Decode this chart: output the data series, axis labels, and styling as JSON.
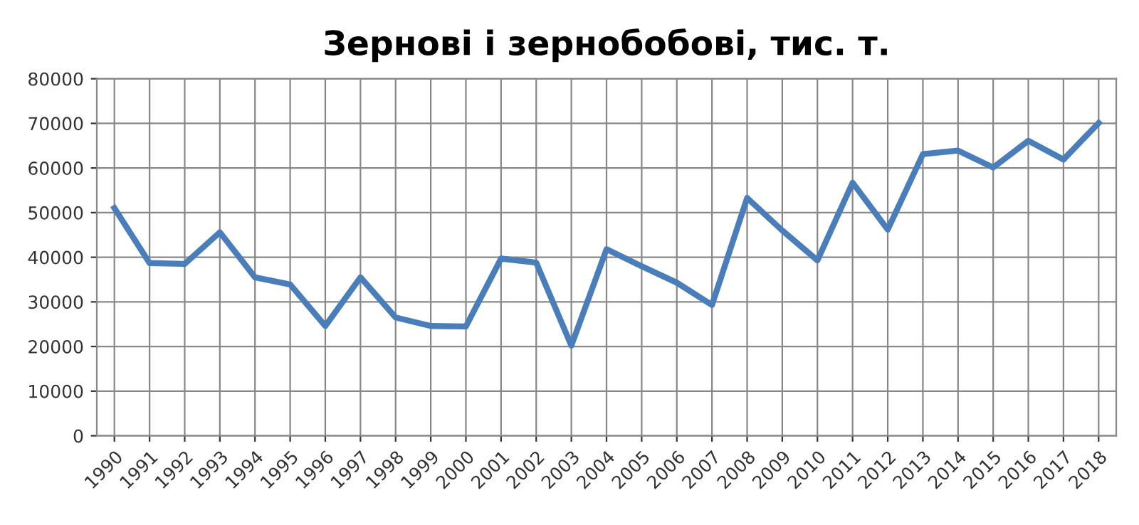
{
  "chart_data": {
    "type": "line",
    "title": "Зернові і зернобобові, тис. т.",
    "categories": [
      "1990",
      "1991",
      "1992",
      "1993",
      "1994",
      "1995",
      "1996",
      "1997",
      "1998",
      "1999",
      "2000",
      "2001",
      "2002",
      "2003",
      "2004",
      "2005",
      "2006",
      "2007",
      "2008",
      "2009",
      "2010",
      "2011",
      "2012",
      "2013",
      "2014",
      "2015",
      "2016",
      "2017",
      "2018"
    ],
    "series": [
      {
        "color": "#4a7ebb",
        "values": [
          51000,
          38700,
          38500,
          45600,
          35500,
          33900,
          24600,
          35500,
          26500,
          24600,
          24500,
          39700,
          38800,
          20200,
          41800,
          38000,
          34300,
          29300,
          53300,
          46000,
          39300,
          56700,
          46200,
          63100,
          63900,
          60100,
          66100,
          61900,
          70100
        ]
      }
    ],
    "ylim": [
      0,
      80000
    ],
    "yticks": [
      0,
      10000,
      20000,
      30000,
      40000,
      50000,
      60000,
      70000,
      80000
    ],
    "grid": true,
    "marker": "none",
    "line_style": "solid"
  }
}
